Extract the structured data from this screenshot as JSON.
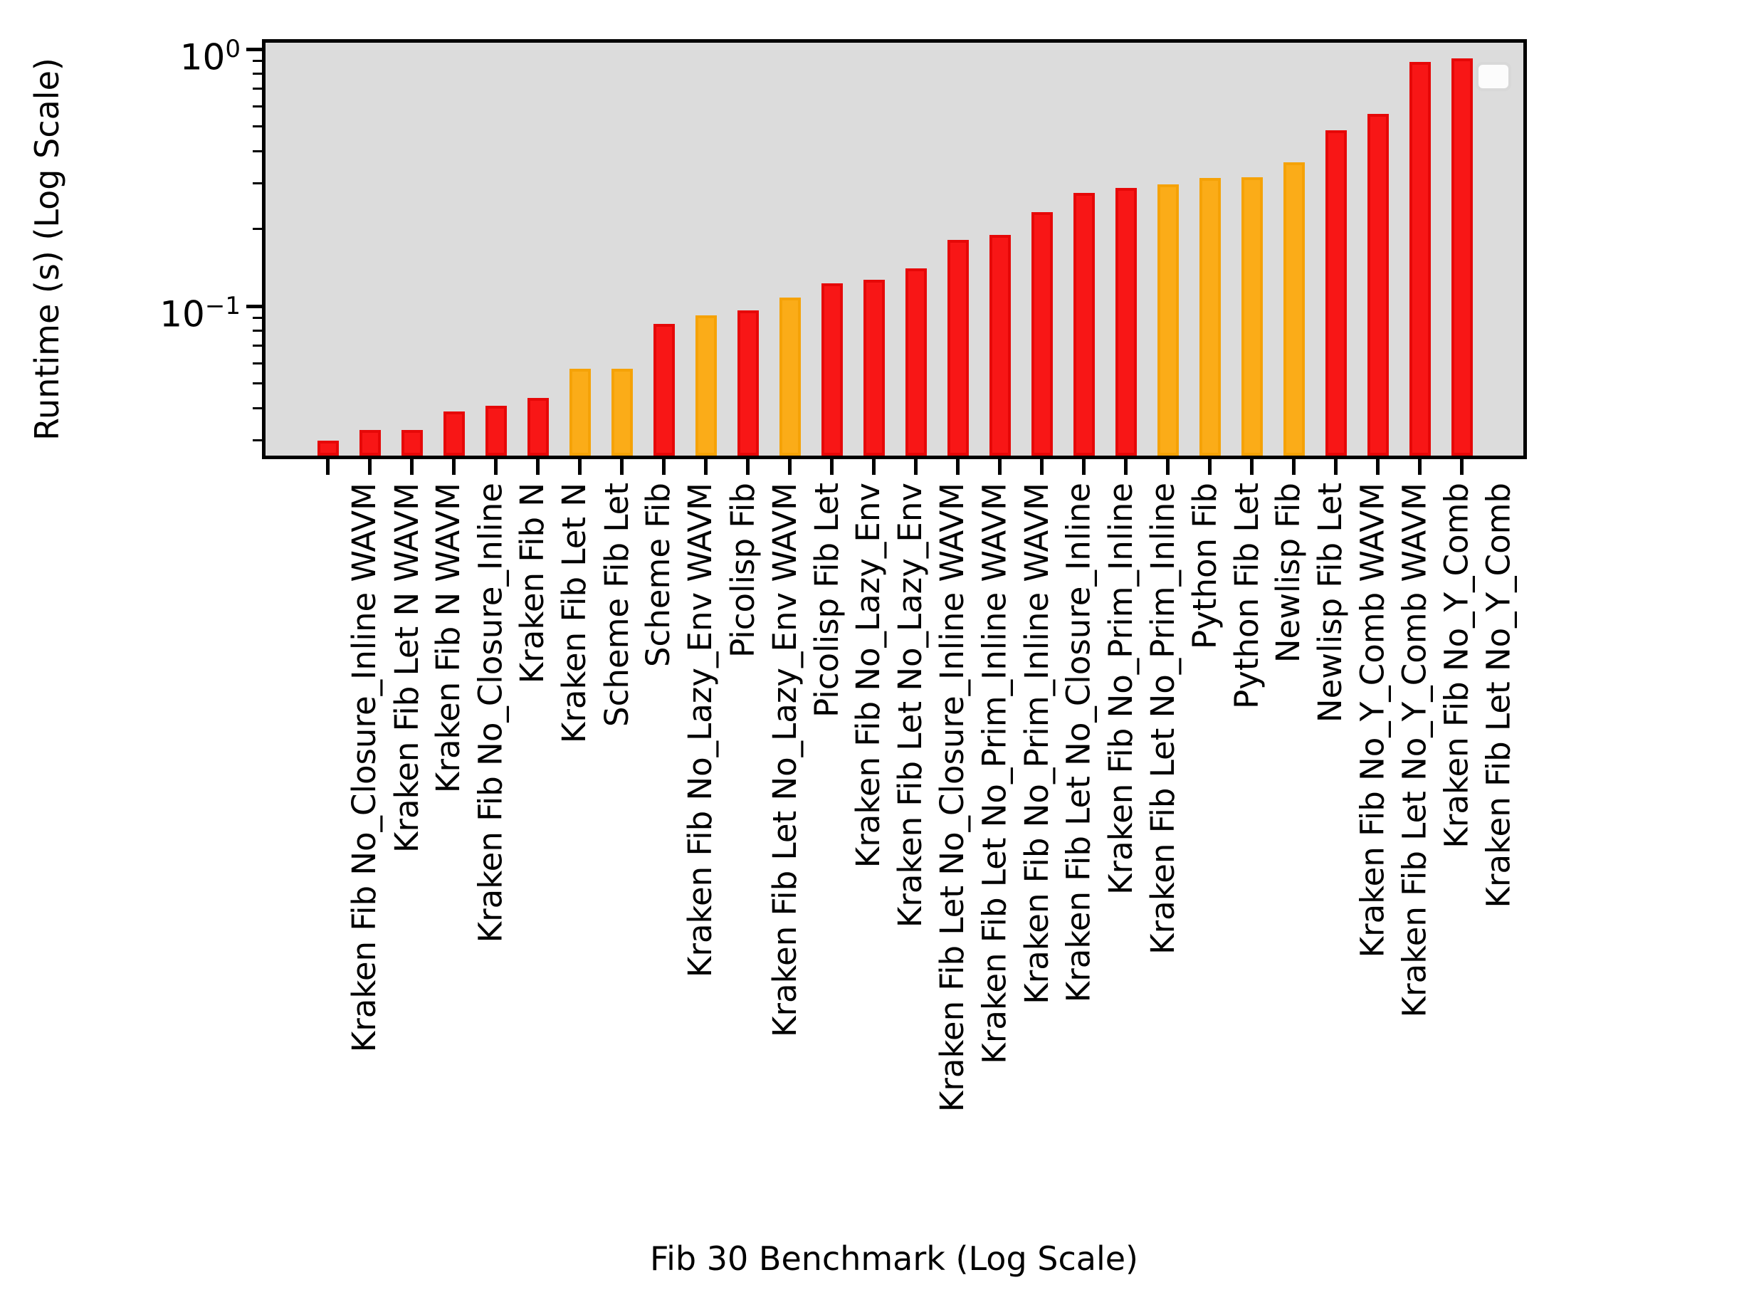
{
  "figure": {
    "background": "#ffffff",
    "plot_background": "#dcdcdc",
    "spine_color": "#000000"
  },
  "chart_data": {
    "type": "bar",
    "title": "",
    "xlabel": "Fib 30 Benchmark (Log Scale)",
    "ylabel": "Runtime (s) (Log Scale)",
    "y_scale": "log",
    "ylim": [
      0.0254,
      1.093
    ],
    "grid": false,
    "legend": {
      "present": true,
      "entries": [],
      "position": "upper-right"
    },
    "colors": {
      "red": "#f81616",
      "orange": "#fbac18"
    },
    "categories": [
      "Kraken Fib No_Closure_Inline WAVM",
      "Kraken Fib Let N WAVM",
      "Kraken Fib N WAVM",
      "Kraken Fib No_Closure_Inline",
      "Kraken Fib N",
      "Kraken Fib Let N",
      "Scheme Fib Let",
      "Scheme Fib",
      "Kraken Fib No_Lazy_Env WAVM",
      "Picolisp Fib",
      "Kraken Fib Let No_Lazy_Env WAVM",
      "Picolisp Fib Let",
      "Kraken Fib No_Lazy_Env",
      "Kraken Fib Let No_Lazy_Env",
      "Kraken Fib Let No_Closure_Inline WAVM",
      "Kraken Fib Let No_Prim_Inline WAVM",
      "Kraken Fib No_Prim_Inline WAVM",
      "Kraken Fib Let No_Closure_Inline",
      "Kraken Fib No_Prim_Inline",
      "Kraken Fib Let No_Prim_Inline",
      "Python Fib",
      "Python Fib Let",
      "Newlisp Fib",
      "Newlisp Fib Let",
      "Kraken Fib No_Y_Comb WAVM",
      "Kraken Fib Let No_Y_Comb WAVM",
      "Kraken Fib No_Y_Comb",
      "Kraken Fib Let No_Y_Comb"
    ],
    "values": [
      0.03,
      0.033,
      0.033,
      0.039,
      0.041,
      0.044,
      0.057,
      0.057,
      0.085,
      0.092,
      0.096,
      0.108,
      0.123,
      0.127,
      0.14,
      0.181,
      0.189,
      0.232,
      0.276,
      0.288,
      0.298,
      0.315,
      0.317,
      0.362,
      0.483,
      0.56,
      0.89,
      0.919
    ],
    "bar_colors": [
      "red",
      "red",
      "red",
      "red",
      "red",
      "red",
      "orange",
      "orange",
      "red",
      "orange",
      "red",
      "orange",
      "red",
      "red",
      "red",
      "red",
      "red",
      "red",
      "red",
      "red",
      "orange",
      "orange",
      "orange",
      "orange",
      "red",
      "red",
      "red",
      "red"
    ],
    "yticks_major": [
      {
        "base": "10",
        "exp": "0",
        "value": 1.0
      },
      {
        "base": "10",
        "exp": "−1",
        "value": 0.1
      }
    ],
    "yticks_minor": [
      0.9,
      0.8,
      0.7,
      0.6,
      0.5,
      0.4,
      0.3,
      0.2,
      0.09,
      0.08,
      0.07,
      0.06,
      0.05,
      0.04,
      0.03
    ]
  }
}
